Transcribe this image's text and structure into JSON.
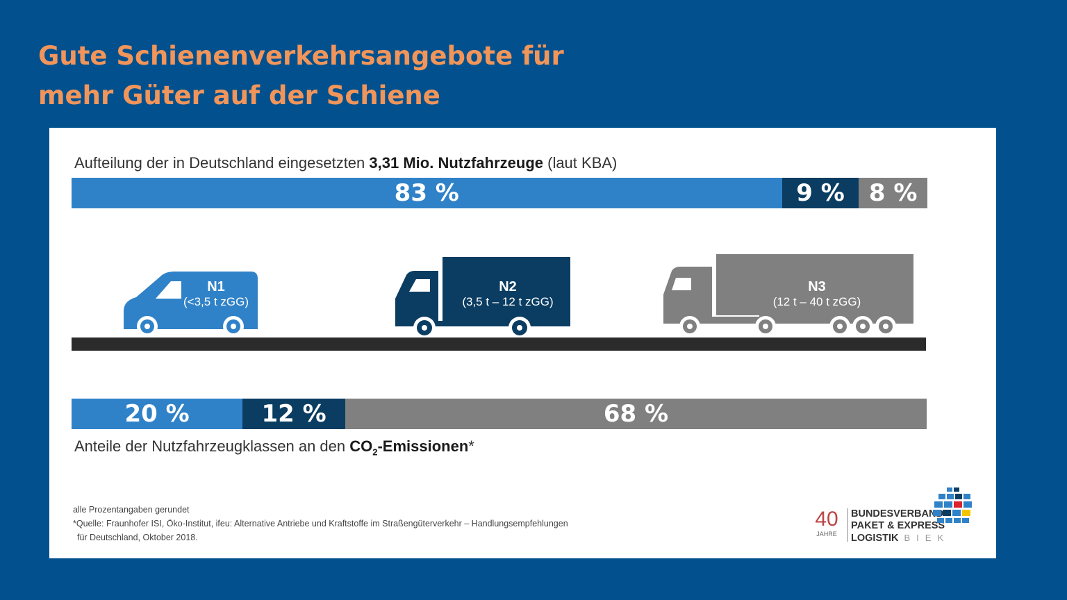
{
  "title": {
    "line1": "Gute Schienenverkehrsangebote für",
    "line2": "mehr Güter auf der Schiene"
  },
  "colors": {
    "background": "#02518e",
    "title": "#f2955a",
    "n1": "#3082c8",
    "n2": "#0b3d62",
    "n3": "#808080"
  },
  "chart_data": [
    {
      "type": "bar",
      "orientation": "horizontal-stacked",
      "title_prefix": "Aufteilung der in Deutschland eingesetzten ",
      "title_bold": "3,31 Mio. Nutzfahrzeuge",
      "title_suffix": " (laut KBA)",
      "categories": [
        "N1",
        "N2",
        "N3"
      ],
      "values": [
        83,
        9,
        8
      ],
      "labels": [
        "83 %",
        "9 %",
        "8 %"
      ],
      "colors": [
        "#3082c8",
        "#0b3d62",
        "#808080"
      ]
    },
    {
      "type": "bar",
      "orientation": "horizontal-stacked",
      "title_prefix": "Anteile der Nutzfahrzeugklassen an den ",
      "title_bold": "CO",
      "title_sub": "2",
      "title_bold2": "-Emissionen",
      "title_suffix": "*",
      "categories": [
        "N1",
        "N2",
        "N3"
      ],
      "values": [
        20,
        12,
        68
      ],
      "labels": [
        "20 %",
        "12 %",
        "68 %"
      ],
      "colors": [
        "#3082c8",
        "#0b3d62",
        "#808080"
      ]
    }
  ],
  "vehicles": [
    {
      "class": "N1",
      "weight": "(<3,5 t zGG)",
      "icon": "van-icon"
    },
    {
      "class": "N2",
      "weight": "(3,5 t – 12 t zGG)",
      "icon": "truck-icon"
    },
    {
      "class": "N3",
      "weight": "(12 t – 40 t zGG)",
      "icon": "semi-truck-icon"
    }
  ],
  "footnotes": {
    "rounded": "alle Prozentangaben gerundet",
    "source1": "*Quelle: Fraunhofer ISI, Öko-Institut, ifeu: Alternative Antriebe und Kraftstoffe im Straßengüterverkehr – Handlungsempfehlungen",
    "source2": "für Deutschland, Oktober 2018."
  },
  "logo": {
    "years": "40",
    "years_label": "JAHRE",
    "line1": "BUNDESVERBAND",
    "line2": "PAKET & EXPRESS",
    "line3": "LOGISTIK",
    "abbr": "BIEK",
    "icon": "globe-icon"
  }
}
